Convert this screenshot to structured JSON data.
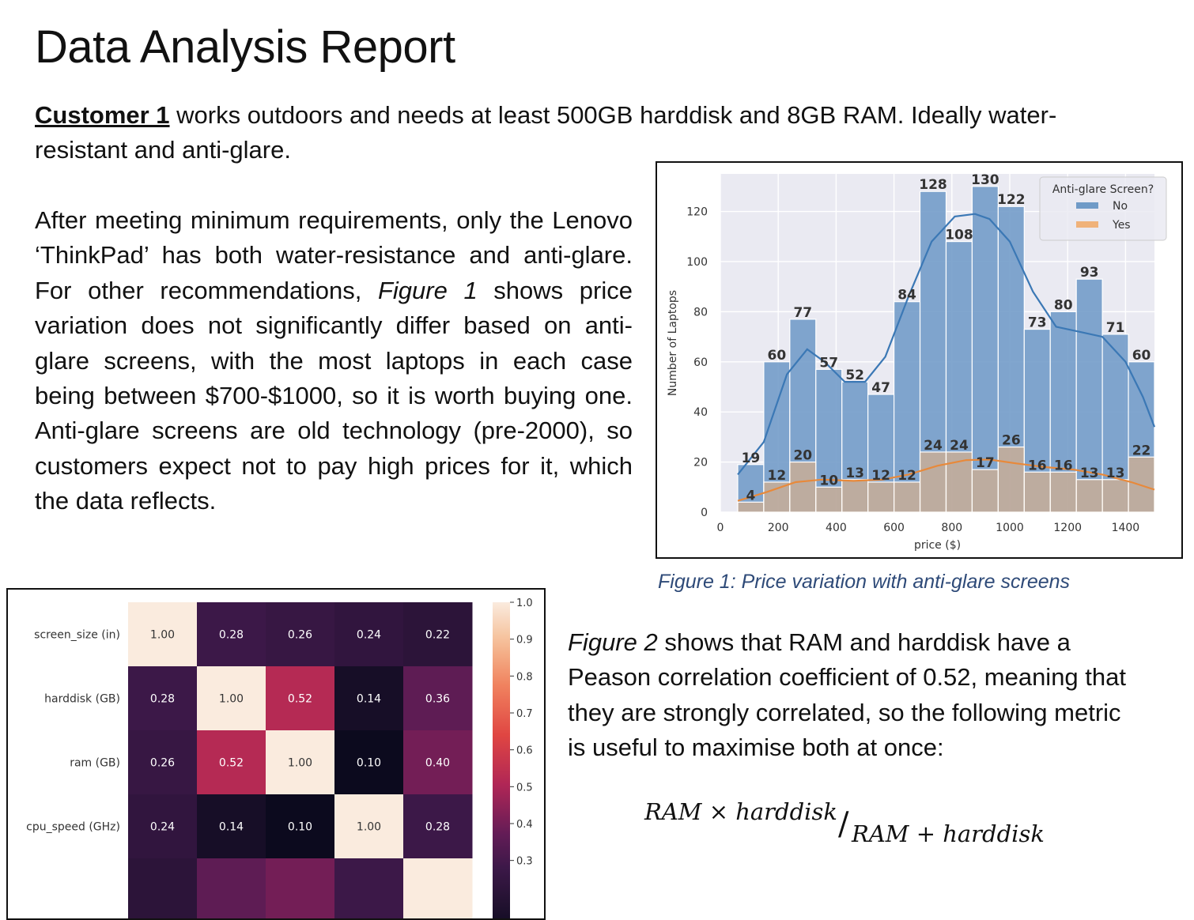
{
  "title": "Data Analysis Report",
  "para1": {
    "customer_label": "Customer 1",
    "text": " works outdoors and needs at least 500GB harddisk and 8GB RAM. Ideally water-resistant and anti-glare."
  },
  "para2": {
    "before_ref": "After meeting minimum requirements, only the Lenovo ‘ThinkPad’ has both water-resistance and anti-glare. For other recommendations, ",
    "ref": "Figure 1",
    "after_ref": " shows price variation does not significantly differ based on anti-glare screens, with the most laptops in each case being between $700-$1000, so it is worth buying one. Anti-glare screens are old technology (pre-2000), so customers expect not to pay high prices for it, which the data reflects."
  },
  "para3": {
    "ref": "Figure 2",
    "text": " shows that RAM and harddisk have a Peason correlation coefficient of 0.52, meaning that they are strongly correlated, so the following metric is useful to maximise both at once:"
  },
  "formula": {
    "numerator": "RAM × harddisk",
    "slash": "/",
    "denominator": "RAM + harddisk"
  },
  "figure1_caption": "Figure 1: Price variation with anti-glare screens",
  "chart_data": [
    {
      "type": "bar",
      "xlabel": "price ($)",
      "ylabel": "Number of Laptops",
      "xlim": [
        0,
        1500
      ],
      "ylim": [
        0,
        135
      ],
      "xticks": [
        0,
        200,
        400,
        600,
        800,
        1000,
        1200,
        1400
      ],
      "yticks": [
        0,
        20,
        40,
        60,
        80,
        100,
        120
      ],
      "grid": true,
      "bin_edges": [
        60,
        150,
        240,
        330,
        420,
        510,
        600,
        690,
        780,
        870,
        960,
        1050,
        1140,
        1230,
        1320,
        1410,
        1500
      ],
      "legend_title": "Anti-glare Screen?",
      "legend_position": "top-right",
      "series": [
        {
          "name": "No",
          "color": "#6f9ac7",
          "values": [
            19,
            60,
            77,
            57,
            52,
            47,
            84,
            128,
            108,
            130,
            122,
            73,
            80,
            93,
            71,
            60
          ]
        },
        {
          "name": "Yes",
          "color": "#f0b27a",
          "values": [
            4,
            12,
            20,
            10,
            13,
            12,
            12,
            24,
            24,
            17,
            26,
            16,
            16,
            13,
            13,
            22
          ]
        }
      ],
      "kde_colors": {
        "No": "#3b78b5",
        "Yes": "#e8893a"
      },
      "kde": {
        "No": [
          [
            60,
            15
          ],
          [
            150,
            28
          ],
          [
            230,
            55
          ],
          [
            300,
            65
          ],
          [
            360,
            60
          ],
          [
            430,
            52
          ],
          [
            500,
            52
          ],
          [
            570,
            62
          ],
          [
            650,
            86
          ],
          [
            730,
            108
          ],
          [
            810,
            118
          ],
          [
            880,
            119
          ],
          [
            930,
            117
          ],
          [
            1000,
            108
          ],
          [
            1080,
            88
          ],
          [
            1160,
            74
          ],
          [
            1240,
            72
          ],
          [
            1320,
            70
          ],
          [
            1400,
            60
          ],
          [
            1460,
            46
          ],
          [
            1500,
            34
          ]
        ],
        "Yes": [
          [
            60,
            4.5
          ],
          [
            160,
            8
          ],
          [
            260,
            12
          ],
          [
            350,
            13
          ],
          [
            460,
            12.5
          ],
          [
            560,
            13
          ],
          [
            650,
            15
          ],
          [
            750,
            18.5
          ],
          [
            850,
            20.8
          ],
          [
            930,
            21
          ],
          [
            1020,
            19.5
          ],
          [
            1120,
            18
          ],
          [
            1220,
            17
          ],
          [
            1320,
            15
          ],
          [
            1420,
            12
          ],
          [
            1500,
            9
          ]
        ]
      }
    },
    {
      "type": "heatmap",
      "rows": [
        "screen_size (in)",
        "harddisk (GB)",
        "ram (GB)",
        "cpu_speed (GHz)"
      ],
      "values": [
        [
          1.0,
          0.28,
          0.26,
          0.24,
          0.22
        ],
        [
          0.28,
          1.0,
          0.52,
          0.14,
          0.36
        ],
        [
          0.26,
          0.52,
          1.0,
          0.1,
          0.4
        ],
        [
          0.24,
          0.14,
          0.1,
          1.0,
          0.28
        ]
      ],
      "colorbar_ticks": [
        "1.0",
        "0.9",
        "0.8",
        "0.7",
        "0.6",
        "0.5",
        "0.4",
        "0.3"
      ],
      "colorbar_range": [
        0.1,
        1.0
      ]
    }
  ]
}
